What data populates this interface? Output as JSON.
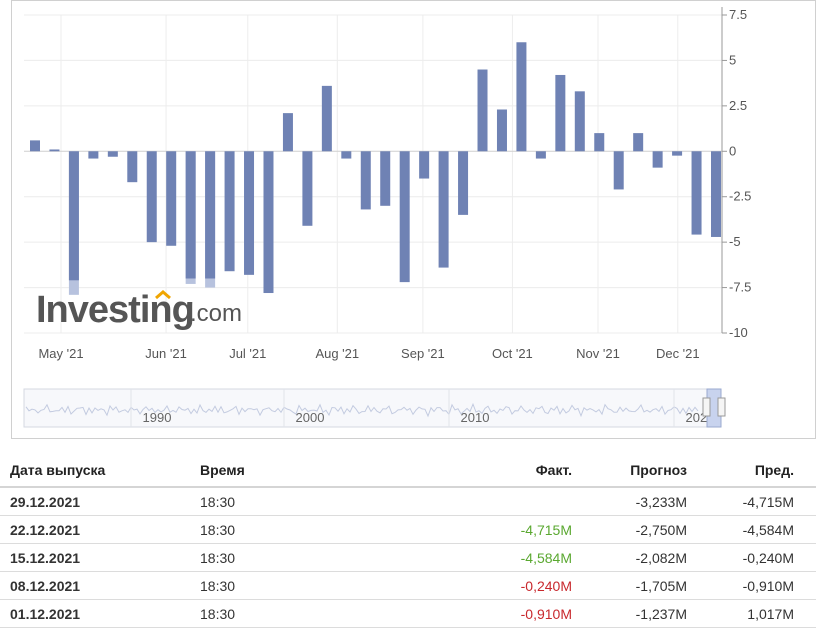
{
  "chart_data": {
    "type": "bar",
    "y_ticks": [
      "7.5",
      "5",
      "2.5",
      "0",
      "-2.5",
      "-5",
      "-7.5",
      "-10"
    ],
    "ylim": [
      -10,
      7.5
    ],
    "x_ticks": [
      "May '21",
      "Jun '21",
      "Jul '21",
      "Aug '21",
      "Sep '21",
      "Oct '21",
      "Nov '21",
      "Dec '21"
    ],
    "series": [
      {
        "values": [
          0.6,
          0.1,
          -7.1,
          -0.4,
          -0.3,
          -1.7,
          -5.0,
          -5.2,
          -7.0,
          -7.0,
          -6.6,
          -6.8,
          -7.8,
          2.1,
          -4.1,
          3.6,
          -0.4,
          -3.2,
          -3.0,
          -7.2,
          -1.5,
          -6.4,
          -3.5,
          4.5,
          2.3,
          6.0,
          -0.4,
          4.2,
          3.3,
          1.0,
          -2.1,
          1.0,
          -0.9,
          -0.24,
          -4.584,
          -4.715
        ]
      }
    ],
    "forecast_overlay": [
      null,
      null,
      -7.9,
      null,
      null,
      null,
      null,
      null,
      -7.3,
      -7.5,
      null,
      null,
      null,
      null,
      null,
      null,
      null,
      null,
      null,
      null,
      null,
      null,
      null,
      null,
      null,
      null,
      null,
      null,
      null,
      null,
      null,
      null,
      null,
      null,
      null,
      null
    ],
    "navigator_ticks": [
      "1990",
      "2000",
      "2010",
      "2020"
    ],
    "bar_color": "#6f82b4",
    "forecast_color": "#b7c2de"
  },
  "logo": {
    "brand": "Investing",
    "suffix": ".com"
  },
  "table": {
    "headers": {
      "date": "Дата выпуска",
      "time": "Время",
      "fact": "Факт.",
      "forecast": "Прогноз",
      "prev": "Пред."
    },
    "rows": [
      {
        "date": "29.12.2021",
        "time": "18:30",
        "fact": "",
        "forecast": "-3,233M",
        "prev": "-4,715M",
        "fact_color": ""
      },
      {
        "date": "22.12.2021",
        "time": "18:30",
        "fact": "-4,715M",
        "forecast": "-2,750M",
        "prev": "-4,584M",
        "fact_color": "pos"
      },
      {
        "date": "15.12.2021",
        "time": "18:30",
        "fact": "-4,584M",
        "forecast": "-2,082M",
        "prev": "-0,240M",
        "fact_color": "pos"
      },
      {
        "date": "08.12.2021",
        "time": "18:30",
        "fact": "-0,240M",
        "forecast": "-1,705M",
        "prev": "-0,910M",
        "fact_color": "neg"
      },
      {
        "date": "01.12.2021",
        "time": "18:30",
        "fact": "-0,910M",
        "forecast": "-1,237M",
        "prev": "1,017M",
        "fact_color": "neg"
      }
    ]
  }
}
